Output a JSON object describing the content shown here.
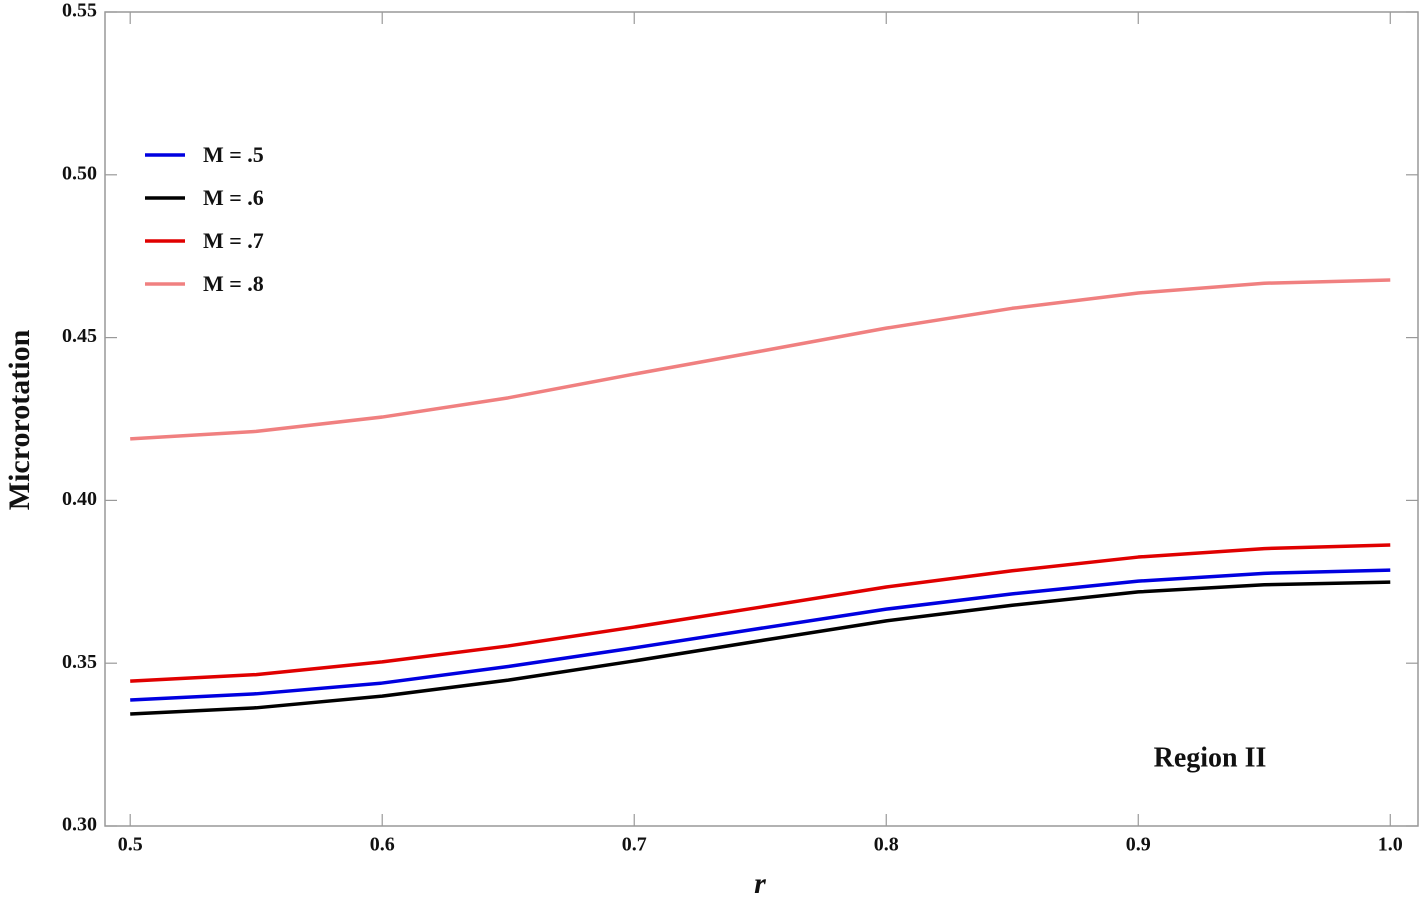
{
  "chart_data": {
    "type": "line",
    "x_label": "r",
    "y_label": "Microrotation",
    "annotation": "Region II",
    "x": [
      0.5,
      0.55,
      0.6,
      0.65,
      0.7,
      0.75,
      0.8,
      0.85,
      0.9,
      0.95,
      1.0
    ],
    "series": [
      {
        "name": "M = .5",
        "color": "#0000e0",
        "values": [
          0.3387,
          0.3406,
          0.3439,
          0.349,
          0.3547,
          0.3607,
          0.3666,
          0.3713,
          0.3752,
          0.3776,
          0.3786
        ]
      },
      {
        "name": "M = .6",
        "color": "#000000",
        "values": [
          0.3344,
          0.3363,
          0.3399,
          0.3448,
          0.3507,
          0.3569,
          0.363,
          0.3678,
          0.3719,
          0.3741,
          0.3749
        ]
      },
      {
        "name": "M = .7",
        "color": "#e00000",
        "values": [
          0.3445,
          0.3465,
          0.3504,
          0.3553,
          0.3611,
          0.3672,
          0.3734,
          0.3784,
          0.3826,
          0.3852,
          0.3863
        ]
      },
      {
        "name": "M = .8",
        "color": "#f08080",
        "values": [
          0.4189,
          0.4212,
          0.4256,
          0.4315,
          0.4388,
          0.4458,
          0.4529,
          0.459,
          0.4637,
          0.4667,
          0.4677
        ]
      }
    ],
    "xlim": [
      0.49,
      1.011
    ],
    "ylim": [
      0.3,
      0.55
    ],
    "xticks": [
      0.5,
      0.6,
      0.7,
      0.8,
      0.9,
      {
        "value": 1.0,
        "label": "1.0"
      }
    ],
    "yticks": [
      {
        "value": 0.3,
        "label": "0.30"
      },
      0.35,
      {
        "value": 0.4,
        "label": "0.40"
      },
      0.45,
      {
        "value": 0.5,
        "label": "0.50"
      },
      0.55
    ],
    "grid": false,
    "legend": "upper left"
  }
}
